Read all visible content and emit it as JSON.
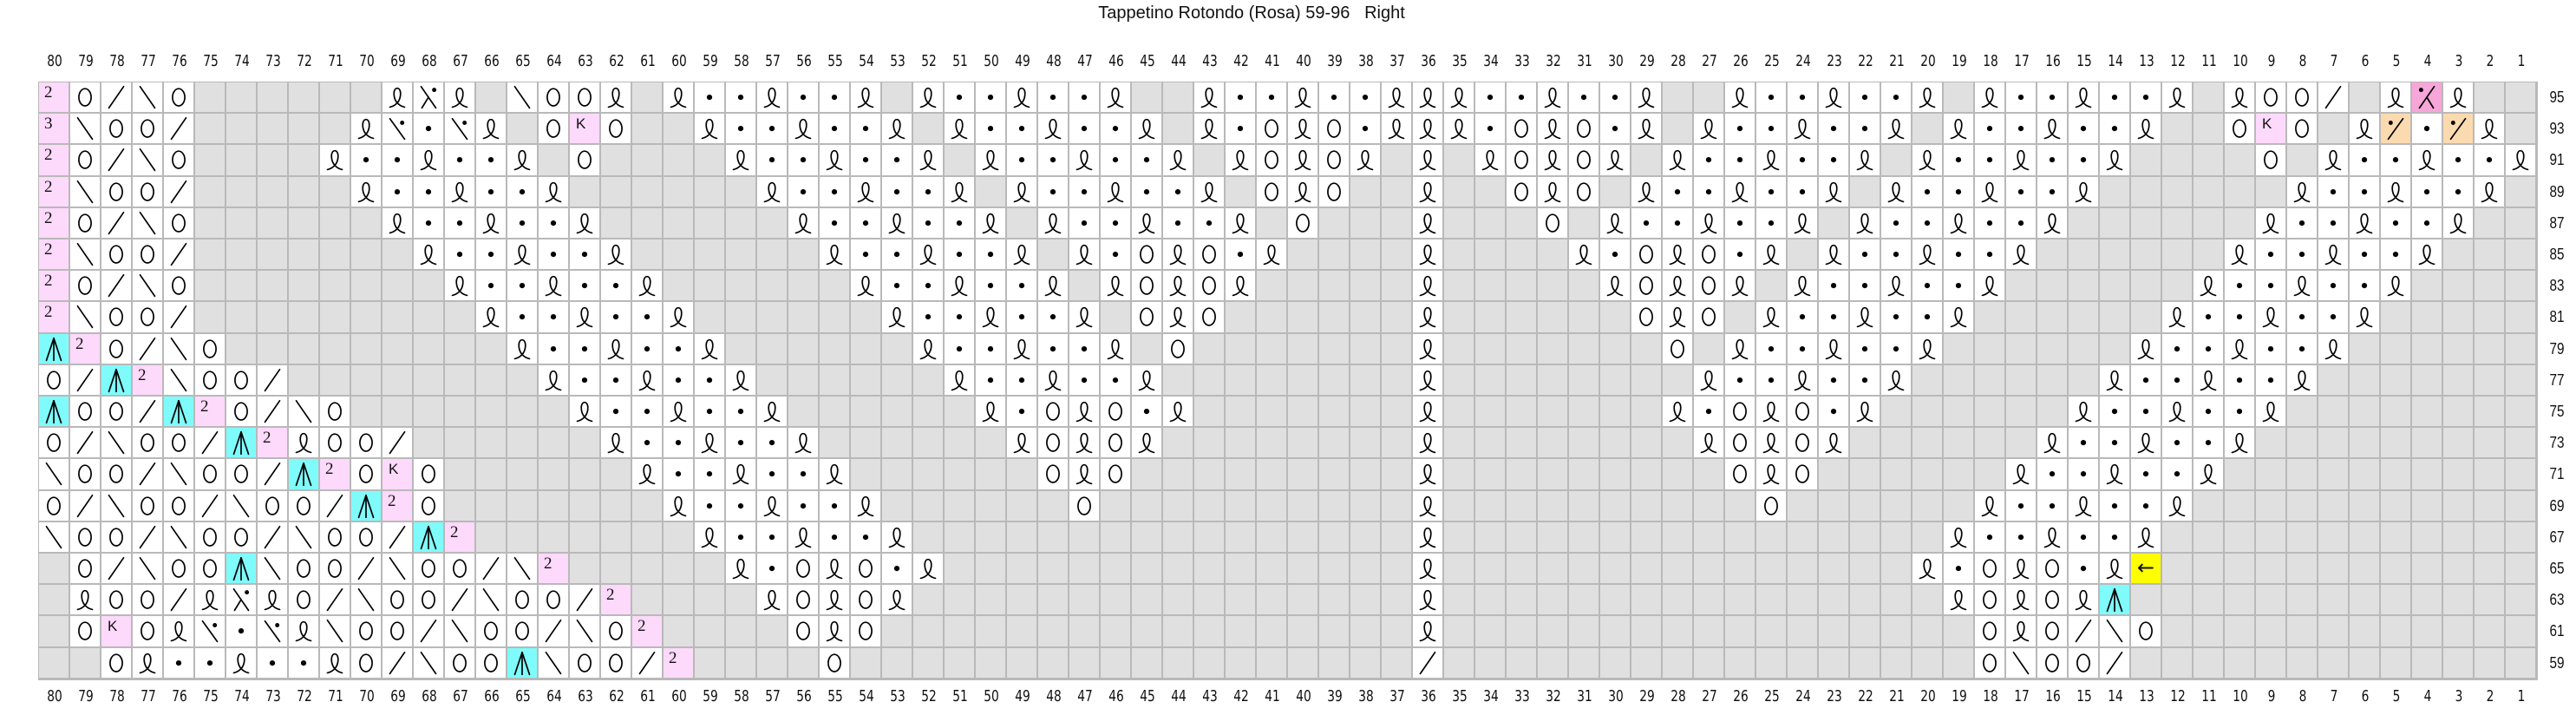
{
  "title": "Tappetino Rotondo (Rosa) 59-96   Right",
  "colors": {
    "no_stitch": "#e0e0e0",
    "grid_line": "#b9b9b9",
    "pink": "#fdd9fb",
    "dark_pink": "#f6a6d8",
    "cyan": "#80fbfb",
    "orange": "#fcdab0",
    "yellow": "#ffff00"
  },
  "symbol_legend": {
    "-": "no-stitch (grey)",
    "Q": "twisted-stitch-loop-icon",
    ".": "purl-dot-icon",
    "O": "yarn-over-circle-icon",
    "/": "right-slant-decrease-icon",
    "b": "left-slant-decrease-icon",
    "A": "central-double-decrease-icon (cyan)",
    "2": "number-2 (pink)",
    "3": "number-3 (pink)",
    "K": "letter-K (pink)",
    "Xr": "decrease-with-dot-right-icon",
    "Xl": "decrease-with-dot-left-icon (dark pink)",
    "b.": "left-slant-decrease-purl-icon",
    "/.": "right-slant-decrease-purl-icon (orange)",
    "<": "left-arrow-icon (yellow)"
  },
  "cell_text": {
    "2": "2",
    "3": "3",
    "K": "K",
    "<": "←"
  },
  "columns": [
    80,
    79,
    78,
    77,
    76,
    75,
    74,
    73,
    72,
    71,
    70,
    69,
    68,
    67,
    66,
    65,
    64,
    63,
    62,
    61,
    60,
    59,
    58,
    57,
    56,
    55,
    54,
    53,
    52,
    51,
    50,
    49,
    48,
    47,
    46,
    45,
    44,
    43,
    42,
    41,
    40,
    39,
    38,
    37,
    36,
    35,
    34,
    33,
    32,
    31,
    30,
    29,
    28,
    27,
    26,
    25,
    24,
    23,
    22,
    21,
    20,
    19,
    18,
    17,
    16,
    15,
    14,
    13,
    12,
    11,
    10,
    9,
    8,
    7,
    6,
    5,
    4,
    3,
    2,
    1
  ],
  "chart_data": {
    "type": "table",
    "title": "Tappetino Rotondo (Rosa) 59-96   Right",
    "column_order": "80 to 1 (left to right)",
    "rows": [
      {
        "number": 95,
        "cells": "2 O / b O - - - - - - Q Xr Q - b O O Q - Q . . Q . . Q - Q . . Q . . Q - - Q . . Q . . Q Q Q . . Q . . Q - - Q . . Q . . Q - Q . . Q . . Q - Q O O / - Q Xl Q - -"
      },
      {
        "number": 93,
        "cells": "3 b O O / - - - - - Q b. . b. Q - O K O - - Q . . Q . . Q - Q . . Q . . Q - Q . O Q O . Q Q Q . O Q O . Q - Q . . Q . . Q - Q . . Q . . Q - - O K O - Q /. . /. Q -"
      },
      {
        "number": 91,
        "cells": "2 O / b O - - - - Q . . Q . . Q - O - - - - Q . . Q . . Q - Q . . Q . . Q - Q O Q O Q - Q - Q O Q O Q - Q . . Q . . Q - Q . . Q . . Q - - - - O - Q . . Q . . Q"
      },
      {
        "number": 89,
        "cells": "2 b O O / - - - - - Q . . Q . . Q - - - - - - Q . . Q . . Q - Q . . Q . . Q - O Q O - - Q - - O Q O - Q . . Q . . Q - Q . . Q . . Q - - - - - - Q . . Q . . Q -"
      },
      {
        "number": 87,
        "cells": "2 O / b O - - - - - - Q . . Q . . Q - - - - - - Q . . Q . . Q - Q . . Q . . Q - O - - - Q - - - O - Q . . Q . . Q - Q . . Q . . Q - - - - - - Q . . Q . . Q - -"
      },
      {
        "number": 85,
        "cells": "2 b O O / - - - - - - - Q . . Q . . Q - - - - - - Q . . Q . . Q - Q . O Q O . Q - - - - Q - - - - Q . O Q O . Q - Q . . Q . . Q - - - - - - Q . . Q . . Q - - -"
      },
      {
        "number": 83,
        "cells": "2 O / b O - - - - - - - - Q . . Q . . Q - - - - - - Q . . Q . . Q - Q O Q O Q - - - - - Q - - - - - Q O Q O Q - Q . . Q . . Q - - - - - - Q . . Q . . Q - - - -"
      },
      {
        "number": 81,
        "cells": "2 b O O / - - - - - - - - - Q . . Q . . Q - - - - - - Q . . Q . . Q - O Q O - - - - - - Q - - - - - - O Q O - Q . . Q . . Q - - - - - - Q . . Q . . Q - - - - -"
      },
      {
        "number": 79,
        "cells": "A 2 O / b O - - - - - - - - - Q . . Q . . Q - - - - - - Q . . Q . . Q - O - - - - - - - Q - - - - - - - O - Q . . Q . . Q - - - - - - Q . . Q . . Q - - - - - -"
      },
      {
        "number": 77,
        "cells": "O / A 2 b O O / - - - - - - - - Q . . Q . . Q - - - - - - Q . . Q . . Q - - - - - - - - Q - - - - - - - - Q . . Q . . Q - - - - - - Q . . Q . . Q - - - - - - -"
      },
      {
        "number": 75,
        "cells": "A O O / A 2 O / b O - - - - - - - Q . . Q . . Q - - - - - - Q . O Q O . Q - - - - - - - Q - - - - - - - Q . O Q O . Q - - - - - - Q . . Q . . Q - - - - - - - -"
      },
      {
        "number": 73,
        "cells": "O / b O O / A 2 Q O O / - - - - - - Q . . Q . . Q - - - - - - Q O Q O Q - - - - - - - - Q - - - - - - - - Q O Q O Q - - - - - - Q . . Q . . Q - - - - - - - - -"
      },
      {
        "number": 71,
        "cells": "b O O / b O O / A 2 O K O - - - - - - Q . . Q . . Q - - - - - - O Q O - - - - - - - - - Q - - - - - - - - - O Q O - - - - - - Q . . Q . . Q - - - - - - - - - -"
      },
      {
        "number": 69,
        "cells": "O / b O O / b O O / A 2 O - - - - - - - Q . . Q . . Q - - - - - - O - - - - - - - - - - Q - - - - - - - - - - O - - - - - - Q . . Q . . Q - - - - - - - - - - -"
      },
      {
        "number": 67,
        "cells": "b O O / b O O / b O O / A 2 - - - - - - - Q . . Q . . Q - - - - - - - - - - - - - - - - Q - - - - - - - - - - - - - - - - Q . . Q . . Q - - - - - - - - - - - -"
      },
      {
        "number": 65,
        "cells": "- O / b O O A b O O / b O O / b 2 - - - - - Q . O Q O . Q - - - - - - - - - - - - - - - Q - - - - - - - - - - - - - - - Q . O Q O . Q < - - - - - - - - - - - -"
      },
      {
        "number": 63,
        "cells": "- Q O O / Q Xr Q O / b O O / b O O / 2 - - - - Q O Q O Q - - - - - - - - - - - - - - - - Q - - - - - - - - - - - - - - - - Q O Q O Q A - - - - - - - - - - - - -"
      },
      {
        "number": 61,
        "cells": "- O K O Q b. . b. Q b O O / b O O / b O 2 - - - - O Q O - - - - - - - - - - - - - - - - - Q - - - - - - - - - - - - - - - - - O Q O / b O - - - - - - - - - - - -"
      },
      {
        "number": 59,
        "cells": "- - O Q . . Q . . Q O / b O O A b O O / 2 - - - - O - - - - - - - - - - - - - - - - - - / - - - - - - - - - - - - - - - - - O b O O / - - - - - - - - - - - - -"
      }
    ]
  }
}
